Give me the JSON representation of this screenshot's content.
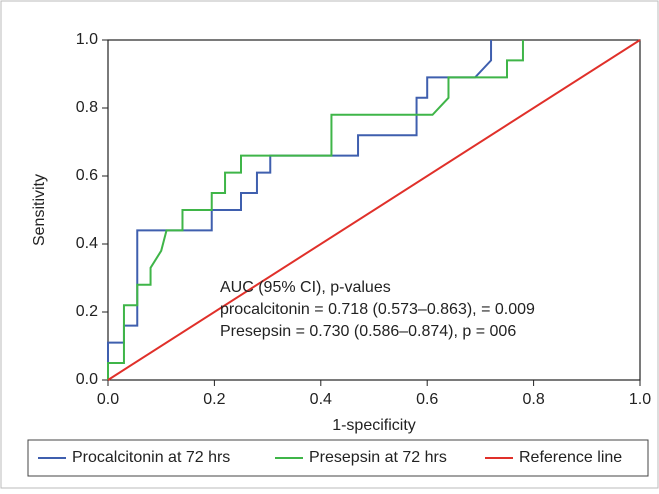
{
  "chart_data": {
    "type": "line",
    "xlabel": "1-specificity",
    "ylabel": "Sensitivity",
    "xlim": [
      0,
      1
    ],
    "ylim": [
      0,
      1
    ],
    "xticks": [
      {
        "value": 0,
        "label": "0.0"
      },
      0.2,
      0.4,
      0.6,
      0.8,
      {
        "value": 1,
        "label": "1.0"
      }
    ],
    "yticks": [
      {
        "value": 0,
        "label": "0.0"
      },
      0.2,
      0.4,
      0.6,
      0.8,
      {
        "value": 1,
        "label": "1.0"
      }
    ],
    "annotation": [
      "AUC (95% CI), p-values",
      "procalcitonin = 0.718 (0.573–0.863), = 0.009",
      "Presepsin = 0.730 (0.586–0.874), p = 006"
    ],
    "legend": "bottom",
    "series": [
      {
        "name": "Procalcitonin at 72 hrs",
        "color": "#3f5fae",
        "x": [
          0,
          0,
          0.03,
          0.03,
          0.055,
          0.055,
          0.195,
          0.195,
          0.25,
          0.25,
          0.28,
          0.28,
          0.305,
          0.305,
          0.47,
          0.47,
          0.58,
          0.58,
          0.6,
          0.6,
          0.69,
          0.72,
          0.72
        ],
        "values": [
          0,
          0.11,
          0.11,
          0.16,
          0.16,
          0.44,
          0.44,
          0.5,
          0.5,
          0.55,
          0.55,
          0.61,
          0.61,
          0.66,
          0.66,
          0.72,
          0.72,
          0.83,
          0.83,
          0.89,
          0.89,
          0.94,
          1
        ]
      },
      {
        "name": "Presepsin at 72 hrs",
        "color": "#3fb548",
        "x": [
          0,
          0,
          0.03,
          0.03,
          0.055,
          0.055,
          0.08,
          0.08,
          0.1,
          0.11,
          0.14,
          0.14,
          0.195,
          0.195,
          0.22,
          0.22,
          0.25,
          0.25,
          0.42,
          0.42,
          0.61,
          0.64,
          0.64,
          0.75,
          0.75,
          0.78,
          0.78
        ],
        "values": [
          0,
          0.05,
          0.05,
          0.22,
          0.22,
          0.28,
          0.28,
          0.33,
          0.38,
          0.44,
          0.44,
          0.5,
          0.5,
          0.55,
          0.55,
          0.61,
          0.61,
          0.66,
          0.66,
          0.78,
          0.78,
          0.83,
          0.89,
          0.89,
          0.94,
          0.94,
          1
        ]
      },
      {
        "name": "Reference line",
        "color": "#e0302a",
        "x": [
          0,
          1
        ],
        "values": [
          0,
          1
        ]
      }
    ]
  }
}
